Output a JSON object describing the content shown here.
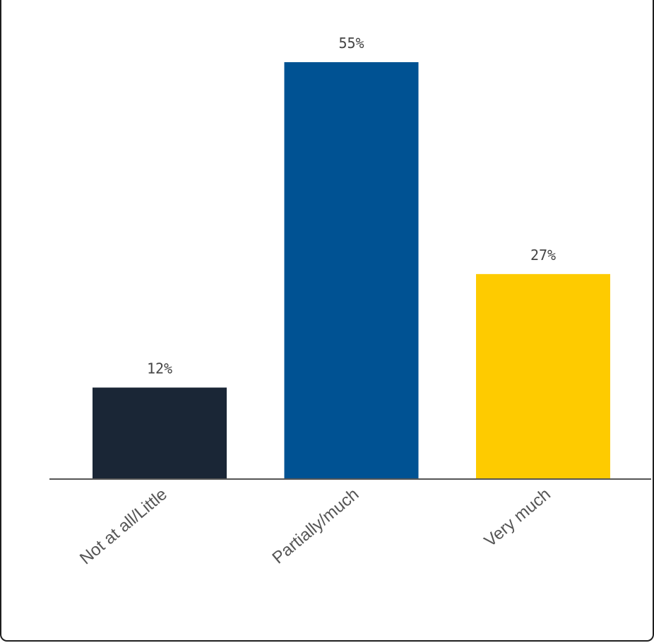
{
  "chart_data": {
    "type": "bar",
    "categories": [
      "Not at all/Little",
      "Partially/much",
      "Very much"
    ],
    "values": [
      12,
      55,
      27
    ],
    "value_labels": [
      "12%",
      "55%",
      "27%"
    ],
    "colors": [
      "#1a2636",
      "#005293",
      "#fecb00"
    ]
  }
}
